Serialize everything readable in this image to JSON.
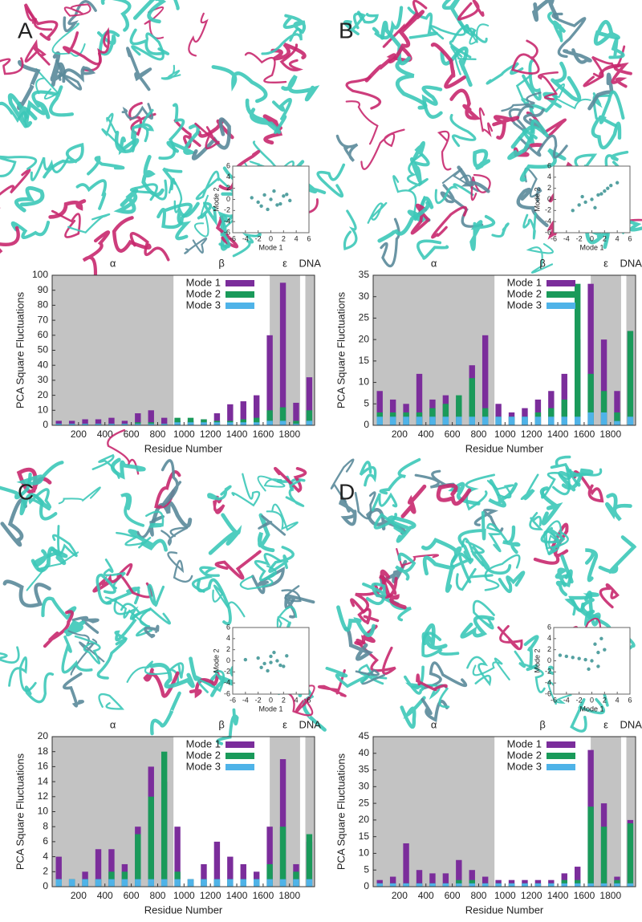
{
  "chart_data": [
    {
      "type": "bar",
      "title": "A",
      "xlabel": "Residue Number",
      "ylabel": "PCA Square Fluctuations",
      "xlim": [
        0,
        1990
      ],
      "xticks": [
        200,
        400,
        600,
        800,
        1000,
        1200,
        1400,
        1600,
        1800
      ],
      "ylim": [
        0,
        100
      ],
      "yticks": [
        0,
        10,
        20,
        30,
        40,
        50,
        60,
        70,
        80,
        90,
        100
      ],
      "regions": [
        {
          "label": "α",
          "start": 0,
          "end": 920,
          "shaded": true
        },
        {
          "label": "β",
          "start": 920,
          "end": 1650,
          "shaded": false
        },
        {
          "label": "ε",
          "start": 1650,
          "end": 1880,
          "shaded": true
        },
        {
          "label": "DNA",
          "start": 1920,
          "end": 1990,
          "shaded": true
        }
      ],
      "x": [
        50,
        150,
        250,
        350,
        450,
        550,
        650,
        750,
        850,
        950,
        1050,
        1150,
        1250,
        1350,
        1450,
        1550,
        1650,
        1750,
        1850,
        1950
      ],
      "series": [
        {
          "name": "Mode 1",
          "color": "#7b2d9b",
          "values": [
            3,
            3,
            4,
            4,
            5,
            3,
            8,
            10,
            5,
            3,
            3,
            4,
            8,
            14,
            16,
            20,
            60,
            95,
            15,
            32
          ]
        },
        {
          "name": "Mode 2",
          "color": "#1a9a5a",
          "values": [
            1,
            1,
            1,
            1,
            1,
            1,
            2,
            2,
            1,
            5,
            5,
            4,
            3,
            3,
            4,
            5,
            10,
            12,
            3,
            10
          ]
        },
        {
          "name": "Mode 3",
          "color": "#4fb3e8",
          "values": [
            1,
            1,
            1,
            1,
            1,
            1,
            1,
            1,
            1,
            2,
            2,
            2,
            2,
            2,
            2,
            2,
            3,
            3,
            1,
            3
          ]
        }
      ],
      "inset": {
        "type": "scatter",
        "xlabel": "Mode 1",
        "ylabel": "Mode 2",
        "xlim": [
          -6,
          6
        ],
        "ylim": [
          -6,
          6
        ],
        "xticks": [
          -6,
          -4,
          -2,
          0,
          2,
          4,
          6
        ],
        "yticks": [
          -6,
          -4,
          -2,
          0,
          2,
          4,
          6
        ],
        "color": "#2a8a8a",
        "x": [
          -3,
          -2,
          -1,
          0,
          1,
          2,
          3,
          -1.5,
          0.5,
          1.5,
          -0.5,
          2.5
        ],
        "y": [
          0.3,
          -0.5,
          0.8,
          0,
          -1,
          0.6,
          -0.2,
          -1.2,
          1.5,
          -0.8,
          -1.8,
          0.9
        ]
      }
    },
    {
      "type": "bar",
      "title": "B",
      "xlabel": "Residue Number",
      "ylabel": "PCA Square Fluctuations",
      "xlim": [
        0,
        1990
      ],
      "xticks": [
        200,
        400,
        600,
        800,
        1000,
        1200,
        1400,
        1600,
        1800
      ],
      "ylim": [
        0,
        35
      ],
      "yticks": [
        0,
        5,
        10,
        15,
        20,
        25,
        30,
        35
      ],
      "regions": [
        {
          "label": "α",
          "start": 0,
          "end": 920,
          "shaded": true
        },
        {
          "label": "β",
          "start": 920,
          "end": 1650,
          "shaded": false
        },
        {
          "label": "ε",
          "start": 1650,
          "end": 1880,
          "shaded": true
        },
        {
          "label": "DNA",
          "start": 1920,
          "end": 1990,
          "shaded": true
        }
      ],
      "x": [
        50,
        150,
        250,
        350,
        450,
        550,
        650,
        750,
        850,
        950,
        1050,
        1150,
        1250,
        1350,
        1450,
        1550,
        1650,
        1750,
        1850,
        1950
      ],
      "series": [
        {
          "name": "Mode 1",
          "color": "#7b2d9b",
          "values": [
            8,
            6,
            5,
            12,
            6,
            7,
            6,
            14,
            21,
            5,
            3,
            4,
            6,
            8,
            12,
            20,
            33,
            20,
            8,
            22
          ]
        },
        {
          "name": "Mode 2",
          "color": "#1a9a5a",
          "values": [
            3,
            3,
            3,
            3,
            4,
            5,
            7,
            11,
            4,
            2,
            2,
            2,
            3,
            4,
            6,
            33,
            12,
            8,
            3,
            22
          ]
        },
        {
          "name": "Mode 3",
          "color": "#4fb3e8",
          "values": [
            2,
            2,
            2,
            2,
            2,
            2,
            2,
            2,
            2,
            2,
            2,
            2,
            2,
            2,
            2,
            2,
            3,
            3,
            1,
            2
          ]
        }
      ],
      "inset": {
        "type": "scatter",
        "xlabel": "Mode 1",
        "ylabel": "Mode 2",
        "xlim": [
          -6,
          6
        ],
        "ylim": [
          -6,
          6
        ],
        "xticks": [
          -6,
          -4,
          -2,
          0,
          2,
          4,
          6
        ],
        "yticks": [
          -6,
          -4,
          -2,
          0,
          2,
          4,
          6
        ],
        "color": "#2a8a8a",
        "x": [
          -2,
          -1,
          0,
          1,
          2,
          3,
          4,
          -1.5,
          0.5,
          1.5,
          -3,
          2.5
        ],
        "y": [
          -1,
          -0.5,
          0,
          0.8,
          1.5,
          2.5,
          3,
          0.5,
          -1.5,
          1,
          -2,
          2
        ]
      }
    },
    {
      "type": "bar",
      "title": "C",
      "xlabel": "Residue Number",
      "ylabel": "PCA Square Fluctuations",
      "xlim": [
        0,
        1990
      ],
      "xticks": [
        200,
        400,
        600,
        800,
        1000,
        1200,
        1400,
        1600,
        1800
      ],
      "ylim": [
        0,
        20
      ],
      "yticks": [
        0,
        2,
        4,
        6,
        8,
        10,
        12,
        14,
        16,
        18,
        20
      ],
      "regions": [
        {
          "label": "α",
          "start": 0,
          "end": 920,
          "shaded": true
        },
        {
          "label": "β",
          "start": 920,
          "end": 1650,
          "shaded": false
        },
        {
          "label": "ε",
          "start": 1650,
          "end": 1880,
          "shaded": true
        },
        {
          "label": "DNA",
          "start": 1920,
          "end": 1990,
          "shaded": true
        }
      ],
      "x": [
        50,
        150,
        250,
        350,
        450,
        550,
        650,
        750,
        850,
        950,
        1050,
        1150,
        1250,
        1350,
        1450,
        1550,
        1650,
        1750,
        1850,
        1950
      ],
      "series": [
        {
          "name": "Mode 1",
          "color": "#7b2d9b",
          "values": [
            4,
            1,
            2,
            5,
            5,
            3,
            8,
            16,
            14,
            8,
            1,
            3,
            6,
            4,
            3,
            2,
            8,
            17,
            3,
            6
          ]
        },
        {
          "name": "Mode 2",
          "color": "#1a9a5a",
          "values": [
            1,
            1,
            1,
            1,
            2,
            2,
            7,
            12,
            18,
            2,
            1,
            1,
            1,
            1,
            1,
            1,
            3,
            8,
            2,
            7
          ]
        },
        {
          "name": "Mode 3",
          "color": "#4fb3e8",
          "values": [
            1,
            1,
            1,
            1,
            1,
            1,
            1,
            1,
            1,
            1,
            1,
            1,
            1,
            1,
            1,
            1,
            1,
            1,
            1,
            1
          ]
        }
      ],
      "inset": {
        "type": "scatter",
        "xlabel": "Mode 1",
        "ylabel": "Mode 2",
        "xlim": [
          -6,
          6
        ],
        "ylim": [
          -6,
          6
        ],
        "xticks": [
          -6,
          -4,
          -2,
          0,
          2,
          4,
          6
        ],
        "yticks": [
          -6,
          -4,
          -2,
          0,
          2,
          4,
          6
        ],
        "color": "#2a8a8a",
        "x": [
          -2,
          -1,
          0,
          1,
          2,
          -1.5,
          0.5,
          1.5,
          -0.5,
          -4,
          2.5,
          0
        ],
        "y": [
          0.5,
          -0.5,
          0.8,
          0,
          -1,
          -1.2,
          1.5,
          -0.8,
          -1.8,
          0.2,
          0.9,
          -0.3
        ]
      }
    },
    {
      "type": "bar",
      "title": "D",
      "xlabel": "Residue Number",
      "ylabel": "PCA Square Fluctuations",
      "xlim": [
        0,
        1990
      ],
      "xticks": [
        200,
        400,
        600,
        800,
        1000,
        1200,
        1400,
        1600,
        1800
      ],
      "ylim": [
        0,
        45
      ],
      "yticks": [
        0,
        5,
        10,
        15,
        20,
        25,
        30,
        35,
        40,
        45
      ],
      "regions": [
        {
          "label": "α",
          "start": 0,
          "end": 920,
          "shaded": true
        },
        {
          "label": "β",
          "start": 920,
          "end": 1650,
          "shaded": false
        },
        {
          "label": "ε",
          "start": 1650,
          "end": 1880,
          "shaded": true
        },
        {
          "label": "DNA",
          "start": 1920,
          "end": 1990,
          "shaded": true
        }
      ],
      "x": [
        50,
        150,
        250,
        350,
        450,
        550,
        650,
        750,
        850,
        950,
        1050,
        1150,
        1250,
        1350,
        1450,
        1550,
        1650,
        1750,
        1850,
        1950
      ],
      "series": [
        {
          "name": "Mode 1",
          "color": "#7b2d9b",
          "values": [
            2,
            3,
            13,
            5,
            4,
            4,
            8,
            5,
            3,
            2,
            2,
            2,
            2,
            2,
            4,
            6,
            41,
            25,
            3,
            20
          ]
        },
        {
          "name": "Mode 2",
          "color": "#1a9a5a",
          "values": [
            1,
            1,
            1,
            1,
            1,
            1,
            2,
            2,
            1,
            1,
            1,
            1,
            1,
            1,
            2,
            2,
            24,
            18,
            2,
            19
          ]
        },
        {
          "name": "Mode 3",
          "color": "#4fb3e8",
          "values": [
            1,
            1,
            1,
            1,
            1,
            1,
            1,
            1,
            1,
            1,
            1,
            1,
            1,
            1,
            1,
            1,
            1,
            1,
            1,
            1
          ]
        }
      ],
      "inset": {
        "type": "scatter",
        "xlabel": "Mode 1",
        "ylabel": "Mode 2",
        "xlim": [
          -6,
          6
        ],
        "ylim": [
          -6,
          6
        ],
        "xticks": [
          -6,
          -4,
          -2,
          0,
          2,
          4,
          6
        ],
        "yticks": [
          -6,
          -4,
          -2,
          0,
          2,
          4,
          6
        ],
        "color": "#2a8a8a",
        "x": [
          -5,
          -4,
          -3,
          -2,
          -1,
          0,
          1,
          2,
          0.5,
          1.5,
          -0.5,
          1
        ],
        "y": [
          1,
          0.8,
          0.6,
          0.4,
          0.2,
          0,
          -1,
          2,
          3,
          4,
          -1.5,
          1.5
        ]
      }
    }
  ]
}
